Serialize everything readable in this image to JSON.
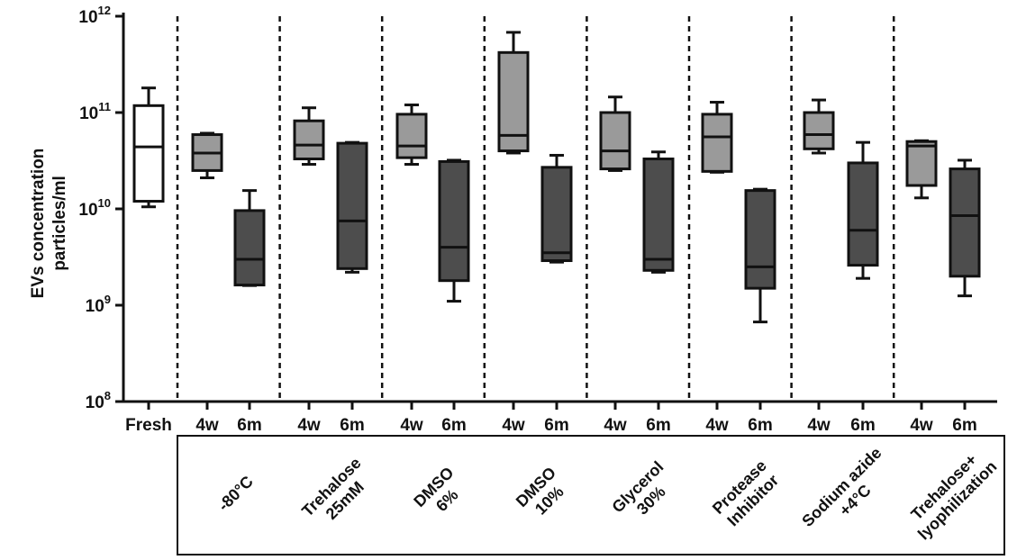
{
  "chart_data": {
    "type": "box",
    "ylabel_lines": [
      "EVs concentration",
      "particles/ml"
    ],
    "yscale": "log",
    "ylim": [
      100000000,
      1000000000000
    ],
    "y_ticks": [
      {
        "value": 1000000000000,
        "base": "10",
        "exp": "12"
      },
      {
        "value": 100000000000,
        "base": "10",
        "exp": "11"
      },
      {
        "value": 10000000000,
        "base": "10",
        "exp": "10"
      },
      {
        "value": 1000000000,
        "base": "10",
        "exp": "9"
      },
      {
        "value": 100000000,
        "base": "10",
        "exp": "8"
      }
    ],
    "colors": {
      "fresh": "#ffffff",
      "4w": "#9a9a9a",
      "6m": "#4d4d4d",
      "line": "#111111"
    },
    "groups": [
      {
        "label_lines": [],
        "boxes": [
          {
            "tick": "Fresh",
            "series": "fresh",
            "min": 10500000000.0,
            "q1": 12000000000.0,
            "median": 44000000000.0,
            "q3": 118000000000.0,
            "max": 180000000000.0
          }
        ]
      },
      {
        "label_lines": [
          "-80°C"
        ],
        "boxes": [
          {
            "tick": "4w",
            "series": "4w",
            "min": 21000000000.0,
            "q1": 25000000000.0,
            "median": 38000000000.0,
            "q3": 59000000000.0,
            "max": 61000000000.0
          },
          {
            "tick": "6m",
            "series": "6m",
            "min": 1600000000.0,
            "q1": 1620000000.0,
            "median": 3000000000.0,
            "q3": 9600000000.0,
            "max": 15500000000.0
          }
        ]
      },
      {
        "label_lines": [
          "Trehalose",
          "25mM"
        ],
        "boxes": [
          {
            "tick": "4w",
            "series": "4w",
            "min": 29000000000.0,
            "q1": 33000000000.0,
            "median": 46000000000.0,
            "q3": 82000000000.0,
            "max": 112000000000.0
          },
          {
            "tick": "6m",
            "series": "6m",
            "min": 2200000000.0,
            "q1": 2400000000.0,
            "median": 7500000000.0,
            "q3": 48000000000.0,
            "max": 49000000000.0
          }
        ]
      },
      {
        "label_lines": [
          "DMSO",
          "6%"
        ],
        "boxes": [
          {
            "tick": "4w",
            "series": "4w",
            "min": 29000000000.0,
            "q1": 34000000000.0,
            "median": 45000000000.0,
            "q3": 96000000000.0,
            "max": 120000000000.0
          },
          {
            "tick": "6m",
            "series": "6m",
            "min": 1100000000.0,
            "q1": 1800000000.0,
            "median": 4000000000.0,
            "q3": 31000000000.0,
            "max": 32000000000.0
          }
        ]
      },
      {
        "label_lines": [
          "DMSO",
          "10%"
        ],
        "boxes": [
          {
            "tick": "4w",
            "series": "4w",
            "min": 38000000000.0,
            "q1": 40000000000.0,
            "median": 58000000000.0,
            "q3": 420000000000.0,
            "max": 680000000000.0
          },
          {
            "tick": "6m",
            "series": "6m",
            "min": 2800000000.0,
            "q1": 2900000000.0,
            "median": 3500000000.0,
            "q3": 27000000000.0,
            "max": 36000000000.0
          }
        ]
      },
      {
        "label_lines": [
          "Glycerol",
          "30%"
        ],
        "boxes": [
          {
            "tick": "4w",
            "series": "4w",
            "min": 25000000000.0,
            "q1": 26000000000.0,
            "median": 40000000000.0,
            "q3": 100000000000.0,
            "max": 145000000000.0
          },
          {
            "tick": "6m",
            "series": "6m",
            "min": 2200000000.0,
            "q1": 2300000000.0,
            "median": 3000000000.0,
            "q3": 33000000000.0,
            "max": 39000000000.0
          }
        ]
      },
      {
        "label_lines": [
          "Protease",
          "Inhibitor"
        ],
        "boxes": [
          {
            "tick": "4w",
            "series": "4w",
            "min": 24000000000.0,
            "q1": 24500000000.0,
            "median": 56000000000.0,
            "q3": 96000000000.0,
            "max": 128000000000.0
          },
          {
            "tick": "6m",
            "series": "6m",
            "min": 670000000.0,
            "q1": 1500000000.0,
            "median": 2500000000.0,
            "q3": 15500000000.0,
            "max": 16000000000.0
          }
        ]
      },
      {
        "label_lines": [
          "Sodium azide",
          "+4°C"
        ],
        "boxes": [
          {
            "tick": "4w",
            "series": "4w",
            "min": 38000000000.0,
            "q1": 42000000000.0,
            "median": 59000000000.0,
            "q3": 100000000000.0,
            "max": 135000000000.0
          },
          {
            "tick": "6m",
            "series": "6m",
            "min": 1900000000.0,
            "q1": 2600000000.0,
            "median": 6000000000.0,
            "q3": 30000000000.0,
            "max": 49000000000.0
          }
        ]
      },
      {
        "label_lines": [
          "Trehalose+",
          "lyophilization"
        ],
        "boxes": [
          {
            "tick": "4w",
            "series": "4w",
            "min": 13000000000.0,
            "q1": 17500000000.0,
            "median": 45000000000.0,
            "q3": 50000000000.0,
            "max": 51000000000.0
          },
          {
            "tick": "6m",
            "series": "6m",
            "min": 1250000000.0,
            "q1": 2000000000.0,
            "median": 8500000000.0,
            "q3": 26000000000.0,
            "max": 32000000000.0
          }
        ]
      }
    ]
  }
}
